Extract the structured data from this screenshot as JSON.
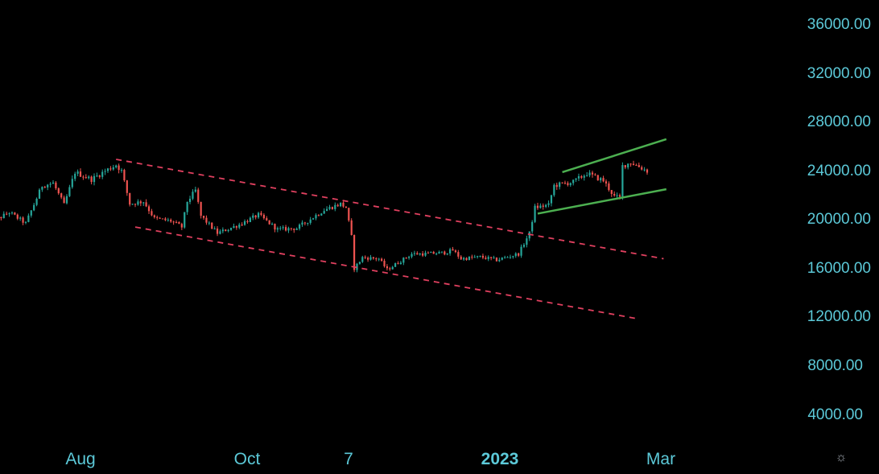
{
  "chart_data": {
    "type": "candlestick",
    "title": "",
    "xlabel": "",
    "ylabel": "",
    "ylim": [
      2000,
      37400
    ],
    "y_ticks": [
      "36000.00",
      "32000.00",
      "28000.00",
      "24000.00",
      "20000.00",
      "16000.00",
      "12000.00",
      "8000.00",
      "4000.00"
    ],
    "x_ticks": [
      {
        "label": "Aug",
        "date": "2022-08-01",
        "bold": false
      },
      {
        "label": "Oct",
        "date": "2022-10-01",
        "bold": false
      },
      {
        "label": "7",
        "date": "2022-11-07",
        "bold": false
      },
      {
        "label": "2023",
        "date": "2023-01-01",
        "bold": true
      },
      {
        "label": "Mar",
        "date": "2023-03-01",
        "bold": false
      }
    ],
    "grid": false,
    "colors": {
      "up": "#26a69a",
      "down": "#ef5350",
      "channel_down": "#e0405f",
      "channel_up": "#4caf50",
      "axis_text": "#5cc9d8"
    },
    "price_path": [
      [
        "2022-06-28",
        19500
      ],
      [
        "2022-07-06",
        20500
      ],
      [
        "2022-07-12",
        19600
      ],
      [
        "2022-07-18",
        22700
      ],
      [
        "2022-07-22",
        22900
      ],
      [
        "2022-07-26",
        21100
      ],
      [
        "2022-07-30",
        23800
      ],
      [
        "2022-08-05",
        23200
      ],
      [
        "2022-08-10",
        23900
      ],
      [
        "2022-08-14",
        24400
      ],
      [
        "2022-08-16",
        23900
      ],
      [
        "2022-08-19",
        21200
      ],
      [
        "2022-08-24",
        21400
      ],
      [
        "2022-08-28",
        20000
      ],
      [
        "2022-09-03",
        19800
      ],
      [
        "2022-09-07",
        19300
      ],
      [
        "2022-09-09",
        21400
      ],
      [
        "2022-09-12",
        22300
      ],
      [
        "2022-09-14",
        20200
      ],
      [
        "2022-09-20",
        18800
      ],
      [
        "2022-09-28",
        19500
      ],
      [
        "2022-10-05",
        20300
      ],
      [
        "2022-10-12",
        19100
      ],
      [
        "2022-10-19",
        19200
      ],
      [
        "2022-10-25",
        20100
      ],
      [
        "2022-10-29",
        20700
      ],
      [
        "2022-11-04",
        21200
      ],
      [
        "2022-11-06",
        20900
      ],
      [
        "2022-11-08",
        18500
      ],
      [
        "2022-11-09",
        15900
      ],
      [
        "2022-11-12",
        16800
      ],
      [
        "2022-11-18",
        16700
      ],
      [
        "2022-11-21",
        15800
      ],
      [
        "2022-11-30",
        17100
      ],
      [
        "2022-12-05",
        17100
      ],
      [
        "2022-12-12",
        17200
      ],
      [
        "2022-12-15",
        17400
      ],
      [
        "2022-12-18",
        16700
      ],
      [
        "2022-12-25",
        16850
      ],
      [
        "2022-12-31",
        16600
      ],
      [
        "2023-01-08",
        17100
      ],
      [
        "2023-01-12",
        18800
      ],
      [
        "2023-01-14",
        20900
      ],
      [
        "2023-01-19",
        21100
      ],
      [
        "2023-01-21",
        22700
      ],
      [
        "2023-01-28",
        23000
      ],
      [
        "2023-02-02",
        23700
      ],
      [
        "2023-02-08",
        23100
      ],
      [
        "2023-02-12",
        21800
      ],
      [
        "2023-02-14",
        21700
      ],
      [
        "2023-02-15",
        24300
      ],
      [
        "2023-02-18",
        24600
      ],
      [
        "2023-02-24",
        23900
      ]
    ],
    "trendlines": [
      {
        "name": "",
        "style": "dashed",
        "color": "#e0405f",
        "points": [
          [
            "2022-08-14",
            24850
          ],
          [
            "2023-03-02",
            16700
          ]
        ]
      },
      {
        "name": "",
        "style": "dashed",
        "color": "#e0405f",
        "points": [
          [
            "2022-08-21",
            19300
          ],
          [
            "2023-02-20",
            11800
          ]
        ]
      },
      {
        "name": "",
        "style": "solid",
        "color": "#4caf50",
        "points": [
          [
            "2023-01-24",
            23800
          ],
          [
            "2023-03-03",
            26500
          ]
        ]
      },
      {
        "name": "",
        "style": "solid",
        "color": "#4caf50",
        "points": [
          [
            "2023-01-15",
            20400
          ],
          [
            "2023-03-03",
            22400
          ]
        ]
      }
    ]
  },
  "ui": {
    "settings_icon": "settings-sun-icon"
  }
}
